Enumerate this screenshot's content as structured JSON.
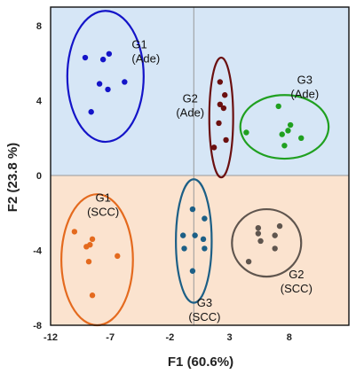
{
  "chart_data": {
    "type": "scatter",
    "xlabel": "F1 (60.6%)",
    "ylabel": "F2 (23.8 %)",
    "xlim": [
      -12,
      13
    ],
    "ylim": [
      -8,
      9
    ],
    "xticks": [
      "-12",
      "-7",
      "-2",
      "3",
      "8"
    ],
    "yticks": [
      "8",
      "4",
      "0",
      "-4",
      "-8"
    ],
    "background": {
      "upper": "#d6e6f6",
      "lower": "#fbe3cf"
    },
    "zero_lines": true,
    "groups": [
      {
        "line1": "G1",
        "line2": "(Ade)",
        "color": "#1414c8",
        "points": [
          [
            -9.1,
            6.3
          ],
          [
            -8.6,
            3.4
          ],
          [
            -7.6,
            6.2
          ],
          [
            -7.9,
            4.9
          ],
          [
            -7.1,
            6.5
          ],
          [
            -7.2,
            4.6
          ],
          [
            -5.8,
            5.0
          ]
        ],
        "ellipse": {
          "cx": -7.4,
          "cy": 5.3,
          "rx": 3.2,
          "ry": 3.5
        }
      },
      {
        "line1": "G2",
        "line2": "(Ade)",
        "color": "#6b1010",
        "points": [
          [
            2.2,
            5.0
          ],
          [
            2.6,
            4.3
          ],
          [
            2.2,
            3.8
          ],
          [
            2.5,
            3.6
          ],
          [
            2.1,
            2.8
          ],
          [
            2.7,
            1.9
          ],
          [
            1.7,
            1.5
          ]
        ],
        "ellipse": {
          "cx": 2.3,
          "cy": 3.1,
          "rx": 1.0,
          "ry": 3.2
        }
      },
      {
        "line1": "G3",
        "line2": "(Ade)",
        "color": "#20a020",
        "points": [
          [
            4.4,
            2.3
          ],
          [
            7.1,
            3.7
          ],
          [
            8.1,
            2.7
          ],
          [
            7.9,
            2.4
          ],
          [
            7.4,
            2.2
          ],
          [
            9.0,
            2.0
          ],
          [
            7.6,
            1.6
          ]
        ],
        "ellipse": {
          "cx": 7.6,
          "cy": 2.6,
          "rx": 3.7,
          "ry": 1.7
        }
      },
      {
        "line1": "G1",
        "line2": "(SCC)",
        "color": "#e46a1e",
        "points": [
          [
            -10.0,
            -3.0
          ],
          [
            -8.5,
            -3.4
          ],
          [
            -9.0,
            -3.8
          ],
          [
            -8.7,
            -3.7
          ],
          [
            -6.4,
            -4.3
          ],
          [
            -8.8,
            -4.6
          ],
          [
            -8.5,
            -6.4
          ]
        ],
        "ellipse": {
          "cx": -8.1,
          "cy": -4.5,
          "rx": 3.0,
          "ry": 3.5
        }
      },
      {
        "line1": "G3",
        "line2": "(SCC)",
        "color": "#1c5f86",
        "points": [
          [
            -0.1,
            -1.8
          ],
          [
            0.9,
            -2.3
          ],
          [
            0.1,
            -3.2
          ],
          [
            -0.9,
            -3.2
          ],
          [
            0.8,
            -3.4
          ],
          [
            -0.8,
            -3.9
          ],
          [
            0.9,
            -3.9
          ],
          [
            -0.1,
            -5.1
          ]
        ],
        "ellipse": {
          "cx": 0.0,
          "cy": -3.5,
          "rx": 1.5,
          "ry": 3.3
        }
      },
      {
        "line1": "G2",
        "line2": "(SCC)",
        "color": "#5f554e",
        "points": [
          [
            5.4,
            -2.8
          ],
          [
            7.2,
            -2.7
          ],
          [
            5.4,
            -3.1
          ],
          [
            6.8,
            -3.2
          ],
          [
            5.6,
            -3.5
          ],
          [
            6.8,
            -3.9
          ],
          [
            4.6,
            -4.6
          ]
        ],
        "ellipse": {
          "cx": 6.1,
          "cy": -3.6,
          "rx": 2.9,
          "ry": 1.8
        }
      }
    ]
  }
}
